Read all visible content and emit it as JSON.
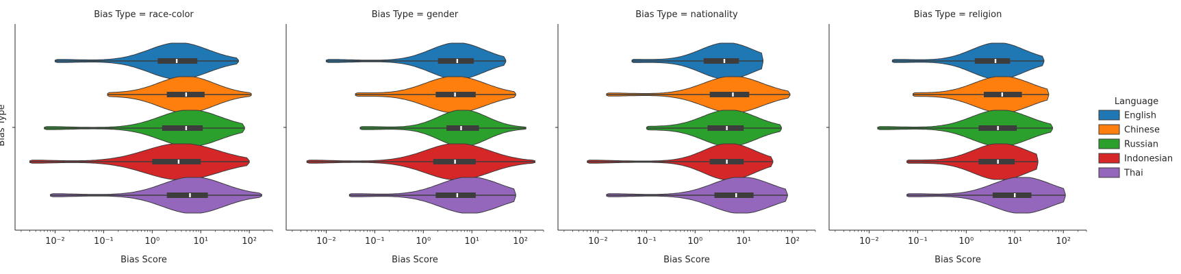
{
  "ylabel": "Bias Type",
  "legend": {
    "title": "Language",
    "placement": "right",
    "items": [
      {
        "label": "English",
        "color": "#1f77b4"
      },
      {
        "label": "Chinese",
        "color": "#ff7f0e"
      },
      {
        "label": "Russian",
        "color": "#2ca02c"
      },
      {
        "label": "Indonesian",
        "color": "#d62728"
      },
      {
        "label": "Thai",
        "color": "#9467bd"
      }
    ]
  },
  "chart_data": [
    {
      "type": "violin",
      "title": "Bias Type = race-color",
      "xlabel": "Bias Score",
      "xscale": "log",
      "xlim": [
        0.0015,
        300
      ],
      "xticks": [
        "10⁻²",
        "10⁻¹",
        "10⁰",
        "10¹",
        "10²"
      ],
      "series": [
        {
          "name": "English",
          "min": 0.01,
          "q1": 1.3,
          "median": 3.2,
          "q3": 8.5,
          "max": 60,
          "mode": 3.5
        },
        {
          "name": "Chinese",
          "min": 0.12,
          "q1": 2.0,
          "median": 5.0,
          "q3": 12,
          "max": 110,
          "mode": 5
        },
        {
          "name": "Russian",
          "min": 0.006,
          "q1": 1.6,
          "median": 5.0,
          "q3": 11,
          "max": 80,
          "mode": 6
        },
        {
          "name": "Indonesian",
          "min": 0.003,
          "q1": 1.0,
          "median": 3.5,
          "q3": 10,
          "max": 100,
          "mode": 4
        },
        {
          "name": "Thai",
          "min": 0.008,
          "q1": 2.0,
          "median": 6.0,
          "q3": 14,
          "max": 180,
          "mode": 7
        }
      ]
    },
    {
      "type": "violin",
      "title": "Bias Type = gender",
      "xlabel": "Bias Score",
      "xscale": "log",
      "xlim": [
        0.0015,
        300
      ],
      "xticks": [
        "10⁻²",
        "10⁻¹",
        "10⁰",
        "10¹",
        "10²"
      ],
      "series": [
        {
          "name": "English",
          "min": 0.01,
          "q1": 2.0,
          "median": 5.0,
          "q3": 11,
          "max": 50,
          "mode": 5
        },
        {
          "name": "Chinese",
          "min": 0.04,
          "q1": 1.8,
          "median": 4.5,
          "q3": 12,
          "max": 80,
          "mode": 4.5
        },
        {
          "name": "Russian",
          "min": 0.05,
          "q1": 3.0,
          "median": 6.0,
          "q3": 14,
          "max": 130,
          "mode": 6.5
        },
        {
          "name": "Indonesian",
          "min": 0.004,
          "q1": 1.6,
          "median": 4.5,
          "q3": 12,
          "max": 200,
          "mode": 5
        },
        {
          "name": "Thai",
          "min": 0.03,
          "q1": 1.8,
          "median": 5.0,
          "q3": 12,
          "max": 80,
          "mode": 9
        }
      ]
    },
    {
      "type": "violin",
      "title": "Bias Type = nationality",
      "xlabel": "Bias Score",
      "xscale": "log",
      "xlim": [
        0.0015,
        300
      ],
      "xticks": [
        "10⁻²",
        "10⁻¹",
        "10⁰",
        "10¹",
        "10²"
      ],
      "series": [
        {
          "name": "English",
          "min": 0.05,
          "q1": 1.5,
          "median": 4.0,
          "q3": 8.0,
          "max": 25,
          "mode": 4.5
        },
        {
          "name": "Chinese",
          "min": 0.015,
          "q1": 2.0,
          "median": 6.0,
          "q3": 13,
          "max": 90,
          "mode": 6
        },
        {
          "name": "Russian",
          "min": 0.1,
          "q1": 1.8,
          "median": 4.5,
          "q3": 10,
          "max": 60,
          "mode": 5
        },
        {
          "name": "Indonesian",
          "min": 0.006,
          "q1": 2.0,
          "median": 4.5,
          "q3": 10,
          "max": 40,
          "mode": 5
        },
        {
          "name": "Thai",
          "min": 0.015,
          "q1": 2.5,
          "median": 7.0,
          "q3": 16,
          "max": 80,
          "mode": 9
        }
      ]
    },
    {
      "type": "violin",
      "title": "Bias Type = religion",
      "xlabel": "Bias Score",
      "xscale": "log",
      "xlim": [
        0.0015,
        300
      ],
      "xticks": [
        "10⁻²",
        "10⁻¹",
        "10⁰",
        "10¹",
        "10²"
      ],
      "series": [
        {
          "name": "English",
          "min": 0.03,
          "q1": 1.5,
          "median": 4.0,
          "q3": 8.0,
          "max": 40,
          "mode": 4.5
        },
        {
          "name": "Chinese",
          "min": 0.08,
          "q1": 2.3,
          "median": 5.5,
          "q3": 14,
          "max": 50,
          "mode": 5.5
        },
        {
          "name": "Russian",
          "min": 0.015,
          "q1": 1.8,
          "median": 4.5,
          "q3": 11,
          "max": 60,
          "mode": 5
        },
        {
          "name": "Indonesian",
          "min": 0.06,
          "q1": 1.8,
          "median": 4.5,
          "q3": 10,
          "max": 30,
          "mode": 5
        },
        {
          "name": "Thai",
          "min": 0.06,
          "q1": 3.5,
          "median": 10,
          "q3": 22,
          "max": 110,
          "mode": 14
        }
      ]
    }
  ]
}
